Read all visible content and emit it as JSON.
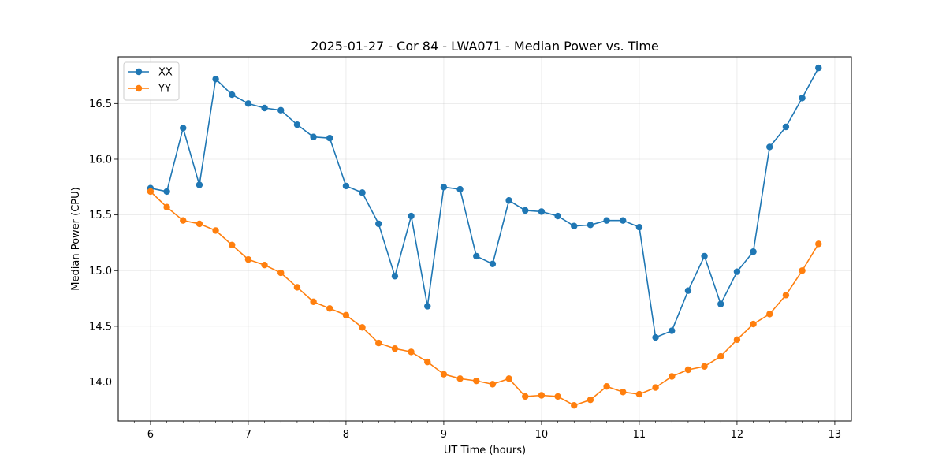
{
  "chart_data": {
    "type": "line",
    "title": "2025-01-27 - Cor 84 - LWA071 - Median Power vs. Time",
    "xlabel": "UT Time (hours)",
    "ylabel": "Median Power (CPU)",
    "xlim": [
      5.67,
      13.17
    ],
    "ylim": [
      13.65,
      16.92
    ],
    "xticks": [
      6,
      7,
      8,
      9,
      10,
      11,
      12,
      13
    ],
    "yticks": [
      14.0,
      14.5,
      15.0,
      15.5,
      16.0,
      16.5
    ],
    "ytick_labels": [
      "14.0",
      "14.5",
      "15.0",
      "15.5",
      "16.0",
      "16.5"
    ],
    "grid": true,
    "legend_position": "top-left",
    "x": [
      6.0,
      6.1667,
      6.3333,
      6.5,
      6.6667,
      6.8333,
      7.0,
      7.1667,
      7.3333,
      7.5,
      7.6667,
      7.8333,
      8.0,
      8.1667,
      8.3333,
      8.5,
      8.6667,
      8.8333,
      9.0,
      9.1667,
      9.3333,
      9.5,
      9.6667,
      9.8333,
      10.0,
      10.1667,
      10.3333,
      10.5,
      10.6667,
      10.8333,
      11.0,
      11.1667,
      11.3333,
      11.5,
      11.6667,
      11.8333,
      12.0,
      12.1667,
      12.3333,
      12.5,
      12.6667,
      12.8333
    ],
    "series": [
      {
        "name": "XX",
        "color": "#1f77b4",
        "values": [
          15.74,
          15.71,
          16.28,
          15.77,
          16.72,
          16.58,
          16.5,
          16.46,
          16.44,
          16.31,
          16.2,
          16.19,
          15.76,
          15.7,
          15.42,
          14.95,
          15.49,
          14.68,
          15.75,
          15.73,
          15.13,
          15.06,
          15.63,
          15.54,
          15.53,
          15.49,
          15.4,
          15.41,
          15.45,
          15.45,
          15.39,
          14.4,
          14.46,
          14.82,
          15.13,
          14.7,
          14.99,
          15.17,
          16.11,
          16.29,
          16.55,
          16.82
        ]
      },
      {
        "name": "YY",
        "color": "#ff7f0e",
        "values": [
          15.71,
          15.57,
          15.45,
          15.42,
          15.36,
          15.23,
          15.1,
          15.05,
          14.98,
          14.85,
          14.72,
          14.66,
          14.6,
          14.49,
          14.35,
          14.3,
          14.27,
          14.18,
          14.07,
          14.03,
          14.01,
          13.98,
          14.03,
          13.87,
          13.88,
          13.87,
          13.79,
          13.84,
          13.96,
          13.91,
          13.89,
          13.95,
          14.05,
          14.11,
          14.14,
          14.23,
          14.38,
          14.52,
          14.61,
          14.78,
          15.0,
          15.24
        ]
      }
    ]
  }
}
